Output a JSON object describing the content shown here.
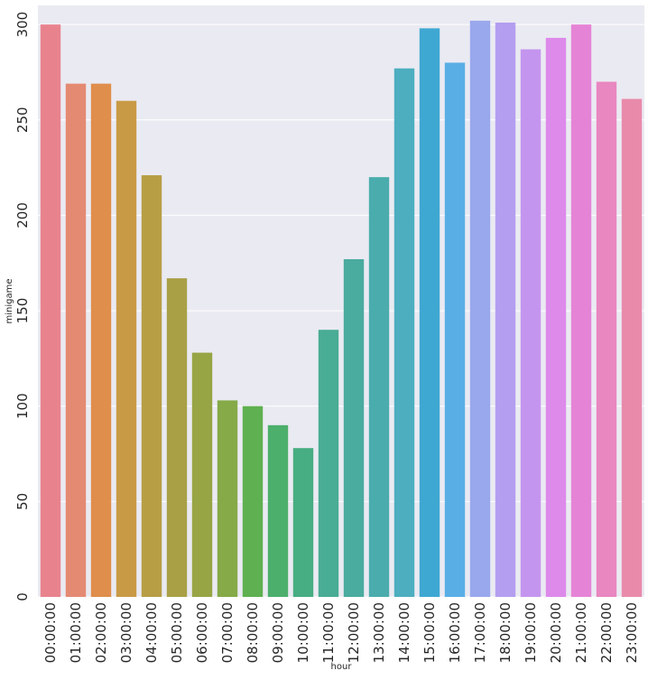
{
  "chart_data": {
    "type": "bar",
    "xlabel": "hour",
    "ylabel": "minigame",
    "ylim": [
      0,
      310
    ],
    "yticks": [
      0,
      50,
      100,
      150,
      200,
      250,
      300
    ],
    "grid": true,
    "categories": [
      "00:00:00",
      "01:00:00",
      "02:00:00",
      "03:00:00",
      "04:00:00",
      "05:00:00",
      "06:00:00",
      "07:00:00",
      "08:00:00",
      "09:00:00",
      "10:00:00",
      "11:00:00",
      "12:00:00",
      "13:00:00",
      "14:00:00",
      "15:00:00",
      "16:00:00",
      "17:00:00",
      "18:00:00",
      "19:00:00",
      "20:00:00",
      "21:00:00",
      "22:00:00",
      "23:00:00"
    ],
    "values": [
      300,
      269,
      269,
      260,
      221,
      167,
      128,
      103,
      100,
      90,
      78,
      140,
      177,
      220,
      277,
      298,
      280,
      302,
      301,
      287,
      293,
      300,
      270,
      261
    ],
    "colors": [
      "#e8838e",
      "#e48a73",
      "#df8e4c",
      "#c99a46",
      "#b79e45",
      "#a9a046",
      "#98a545",
      "#85aa47",
      "#5fb050",
      "#4caf6b",
      "#47ad82",
      "#49ac94",
      "#4aab9f",
      "#4bacad",
      "#4caebf",
      "#3fa8d2",
      "#5aaee6",
      "#99a8ed",
      "#b49ef0",
      "#c495ee",
      "#dd8aea",
      "#e584d6",
      "#e887c0",
      "#e98aab"
    ]
  }
}
